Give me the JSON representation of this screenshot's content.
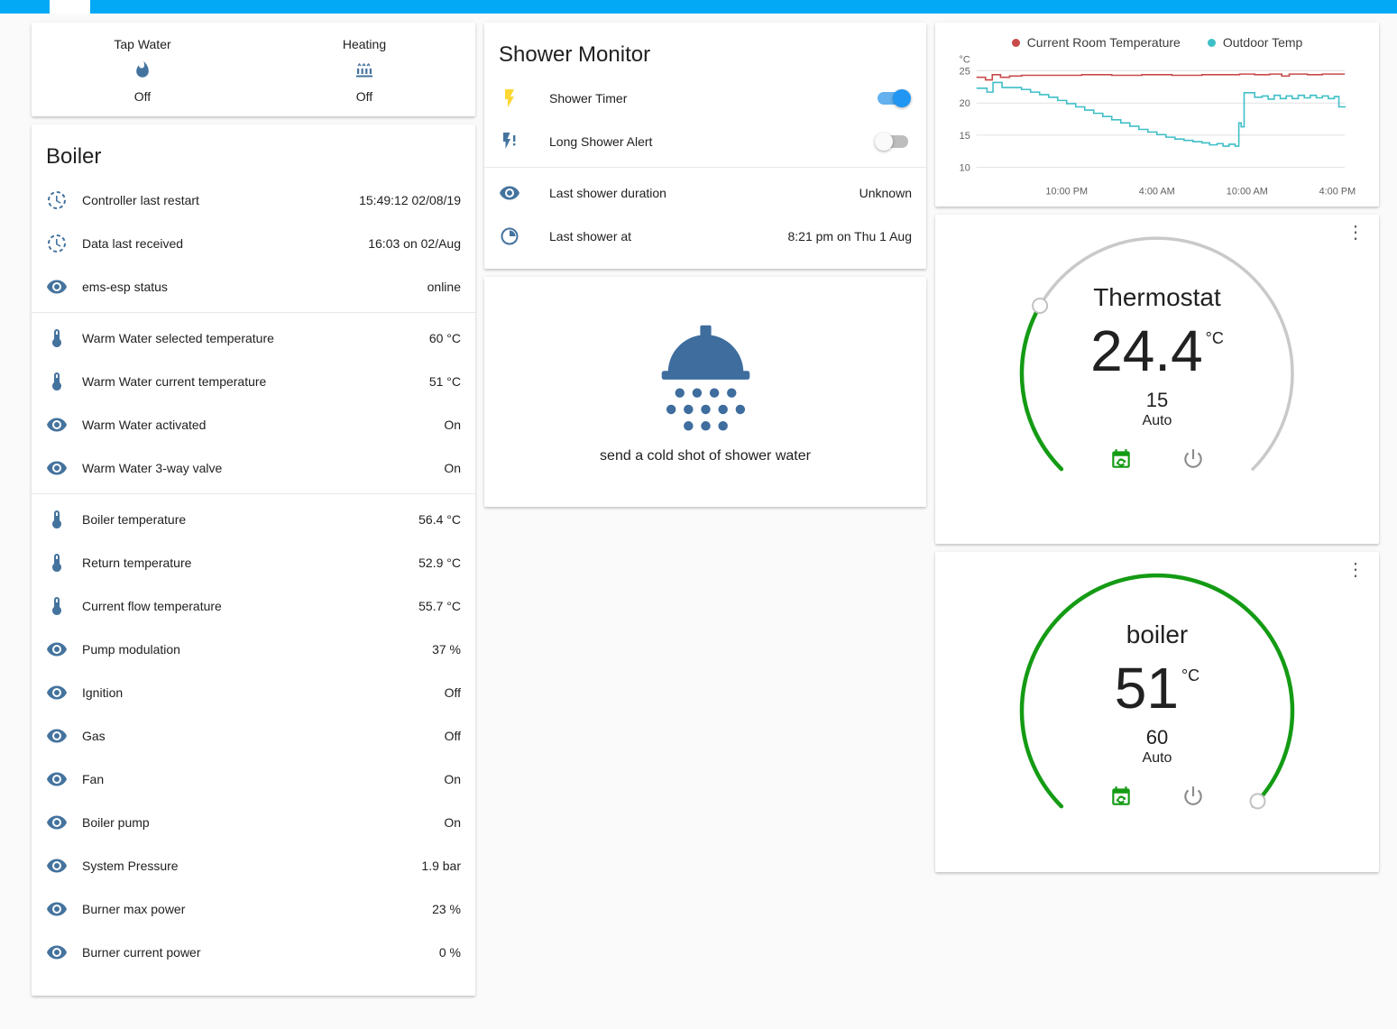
{
  "glance_card": {
    "items": [
      {
        "label": "Tap Water",
        "state": "Off",
        "icon": "fire-icon"
      },
      {
        "label": "Heating",
        "state": "Off",
        "icon": "radiator-icon"
      }
    ]
  },
  "boiler_card": {
    "title": "Boiler",
    "groups": [
      [
        {
          "icon": "progress-clock-icon",
          "name": "Controller last restart",
          "value": "15:49:12 02/08/19"
        },
        {
          "icon": "progress-clock-icon",
          "name": "Data last received",
          "value": "16:03 on 02/Aug"
        },
        {
          "icon": "eye-icon",
          "name": "ems-esp status",
          "value": "online"
        }
      ],
      [
        {
          "icon": "thermometer-icon",
          "name": "Warm Water selected temperature",
          "value": "60 °C"
        },
        {
          "icon": "thermometer-icon",
          "name": "Warm Water current temperature",
          "value": "51 °C"
        },
        {
          "icon": "eye-icon",
          "name": "Warm Water activated",
          "value": "On"
        },
        {
          "icon": "eye-icon",
          "name": "Warm Water 3-way valve",
          "value": "On"
        }
      ],
      [
        {
          "icon": "thermometer-icon",
          "name": "Boiler temperature",
          "value": "56.4 °C"
        },
        {
          "icon": "thermometer-icon",
          "name": "Return temperature",
          "value": "52.9 °C"
        },
        {
          "icon": "thermometer-icon",
          "name": "Current flow temperature",
          "value": "55.7 °C"
        },
        {
          "icon": "eye-icon",
          "name": "Pump modulation",
          "value": "37 %"
        },
        {
          "icon": "eye-icon",
          "name": "Ignition",
          "value": "Off"
        },
        {
          "icon": "eye-icon",
          "name": "Gas",
          "value": "Off"
        },
        {
          "icon": "eye-icon",
          "name": "Fan",
          "value": "On"
        },
        {
          "icon": "eye-icon",
          "name": "Boiler pump",
          "value": "On"
        },
        {
          "icon": "eye-icon",
          "name": "System Pressure",
          "value": "1.9 bar"
        },
        {
          "icon": "eye-icon",
          "name": "Burner max power",
          "value": "23 %"
        },
        {
          "icon": "eye-icon",
          "name": "Burner current power",
          "value": "0 %"
        }
      ]
    ]
  },
  "shower_monitor": {
    "title": "Shower Monitor",
    "toggles": [
      {
        "label": "Shower Timer",
        "state": "on",
        "icon": "flash-icon"
      },
      {
        "label": "Long Shower Alert",
        "state": "off",
        "icon": "flash-alert-icon"
      }
    ],
    "info_rows": [
      {
        "label": "Last shower duration",
        "value": "Unknown",
        "icon": "eye-icon"
      },
      {
        "label": "Last shower at",
        "value": "8:21 pm on Thu 1 Aug",
        "icon": "clock-icon"
      }
    ]
  },
  "shower_action_card": {
    "label": "send a cold shot of shower water",
    "icon": "shower-head-icon"
  },
  "chart_data": {
    "type": "line",
    "title": "",
    "unit": "°C",
    "ylim": [
      10,
      25
    ],
    "yticks": [
      10,
      15,
      20,
      25
    ],
    "xlim": [
      0,
      24.5
    ],
    "xticks": [
      6,
      12,
      18,
      24
    ],
    "xtick_labels": [
      "10:00 PM",
      "4:00 AM",
      "10:00 AM",
      "4:00 PM"
    ],
    "grid": true,
    "legend_position": "top",
    "series": [
      {
        "name": "Current Room Temperature",
        "color": "#c94a4a",
        "step": true,
        "points": [
          [
            0,
            24.0
          ],
          [
            0.6,
            24.0
          ],
          [
            0.6,
            23.6
          ],
          [
            1.05,
            23.6
          ],
          [
            1.05,
            24.4
          ],
          [
            1.6,
            24.4
          ],
          [
            1.6,
            24.0
          ],
          [
            2.2,
            24.2
          ],
          [
            3,
            24.3
          ],
          [
            5,
            24.3
          ],
          [
            7,
            24.4
          ],
          [
            9,
            24.3
          ],
          [
            11,
            24.4
          ],
          [
            13,
            24.3
          ],
          [
            15,
            24.4
          ],
          [
            16.5,
            24.4
          ],
          [
            17.5,
            24.5
          ],
          [
            18.5,
            24.4
          ],
          [
            19.5,
            24.5
          ],
          [
            20.3,
            24.2
          ],
          [
            20.8,
            24.5
          ],
          [
            22,
            24.4
          ],
          [
            23,
            24.5
          ],
          [
            24.5,
            24.5
          ]
        ]
      },
      {
        "name": "Outdoor Temp",
        "color": "#3fbfc7",
        "step": true,
        "points": [
          [
            0,
            22.3
          ],
          [
            0.7,
            22.3
          ],
          [
            0.7,
            21.7
          ],
          [
            1.1,
            21.7
          ],
          [
            1.1,
            23.2
          ],
          [
            1.7,
            23.2
          ],
          [
            1.7,
            22.4
          ],
          [
            2.4,
            22.4
          ],
          [
            3,
            22.1
          ],
          [
            3.6,
            21.7
          ],
          [
            4.2,
            21.3
          ],
          [
            4.8,
            20.9
          ],
          [
            5.4,
            20.4
          ],
          [
            6,
            19.9
          ],
          [
            6.6,
            19.4
          ],
          [
            7.2,
            18.9
          ],
          [
            7.8,
            18.4
          ],
          [
            8.4,
            17.9
          ],
          [
            9,
            17.4
          ],
          [
            9.6,
            16.9
          ],
          [
            10.2,
            16.4
          ],
          [
            10.8,
            15.9
          ],
          [
            11.4,
            15.5
          ],
          [
            12,
            15.1
          ],
          [
            12.6,
            14.7
          ],
          [
            13.2,
            14.4
          ],
          [
            13.8,
            14.2
          ],
          [
            14.4,
            14.0
          ],
          [
            15,
            13.8
          ],
          [
            15.5,
            13.5
          ],
          [
            16,
            13.7
          ],
          [
            16.4,
            13.3
          ],
          [
            16.8,
            13.6
          ],
          [
            17.2,
            13.3
          ],
          [
            17.45,
            16.9
          ],
          [
            17.6,
            16.3
          ],
          [
            17.8,
            21.6
          ],
          [
            18.3,
            21.6
          ],
          [
            18.5,
            20.9
          ],
          [
            19,
            21.1
          ],
          [
            19.4,
            20.6
          ],
          [
            19.8,
            21.2
          ],
          [
            20.2,
            20.7
          ],
          [
            20.6,
            21.1
          ],
          [
            21,
            20.7
          ],
          [
            21.4,
            21.2
          ],
          [
            21.8,
            20.8
          ],
          [
            22.2,
            21.2
          ],
          [
            22.6,
            20.8
          ],
          [
            23,
            21.1
          ],
          [
            23.4,
            20.7
          ],
          [
            23.8,
            21.0
          ],
          [
            24.1,
            19.4
          ],
          [
            24.5,
            19.3
          ]
        ]
      }
    ]
  },
  "thermostat_card": {
    "title": "Thermostat",
    "value": "24.4",
    "unit": "°C",
    "setpoint": "15",
    "mode": "Auto"
  },
  "boiler_gauge_card": {
    "title": "boiler",
    "value": "51",
    "unit": "°C",
    "setpoint": "60",
    "mode": "Auto"
  }
}
